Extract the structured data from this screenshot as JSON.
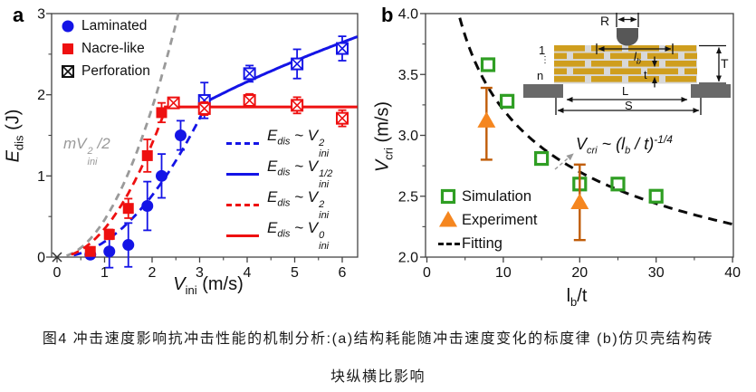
{
  "chart_data": [
    {
      "id": "a",
      "type": "scatter",
      "xlabel": "V_ini (m/s)",
      "ylabel": "E_dis (J)",
      "xlim": [
        -0.115,
        6.32
      ],
      "ylim": [
        0,
        3
      ],
      "x_ticks": [
        0,
        1,
        2,
        3,
        4,
        5,
        6
      ],
      "y_ticks": [
        0,
        1,
        2,
        3
      ],
      "series": [
        {
          "name": "Laminated",
          "marker": "circle",
          "color": "#1414e6",
          "x": [
            0.7,
            1.1,
            1.5,
            1.9,
            2.2,
            2.6
          ],
          "y": [
            0.03,
            0.07,
            0.15,
            0.63,
            1.0,
            1.5
          ],
          "yerr": [
            0.04,
            0.2,
            0.27,
            0.3,
            0.27,
            0.18
          ]
        },
        {
          "name": "Nacre-like",
          "marker": "square",
          "color": "#ee1010",
          "x": [
            0.7,
            1.1,
            1.5,
            1.9,
            2.2
          ],
          "y": [
            0.07,
            0.28,
            0.6,
            1.25,
            1.78
          ],
          "yerr": [
            0.05,
            0.06,
            0.12,
            0.2,
            0.12
          ]
        },
        {
          "name": "Perforation (laminated)",
          "marker": "crossed-square",
          "color": "#1414e6",
          "x": [
            3.1,
            4.05,
            5.05,
            6.0
          ],
          "y": [
            1.93,
            2.26,
            2.38,
            2.57
          ],
          "yerr": [
            0.22,
            0.1,
            0.18,
            0.15
          ]
        },
        {
          "name": "Perforation (nacre-like)",
          "marker": "crossed-square",
          "color": "#ee1010",
          "x": [
            2.45,
            3.1,
            4.05,
            5.05,
            6.0
          ],
          "y": [
            1.9,
            1.83,
            1.93,
            1.87,
            1.71
          ],
          "yerr": [
            0.06,
            0.08,
            0.08,
            0.1,
            0.1
          ]
        }
      ],
      "curves": [
        {
          "name": "mV_ini^2/2",
          "type": "power",
          "coef": 0.46,
          "exp": 2,
          "x_range": [
            0.2,
            2.554
          ],
          "color": "#9a9a9a",
          "dash": "8 6",
          "width": 2.8
        },
        {
          "name": "E_dis ~ V_ini^2 (laminated)",
          "type": "power",
          "coef": 0.19,
          "exp": 2,
          "x_range": [
            0.35,
            3.17
          ],
          "color": "#1414e6",
          "dash": "9 6",
          "width": 2.8
        },
        {
          "name": "E_dis ~ V_ini^2 (nacre-like)",
          "type": "power",
          "coef": 0.35,
          "exp": 2,
          "x_range": [
            0.3,
            2.3
          ],
          "color": "#ee1010",
          "dash": "9 6",
          "width": 2.8
        },
        {
          "name": "E_dis ~ V_ini^1/2",
          "type": "power",
          "coef": 1.08,
          "exp": 0.5,
          "x_range": [
            3.1,
            6.32
          ],
          "color": "#1414e6",
          "dash": "",
          "width": 3
        },
        {
          "name": "E_dis ~ V_ini^0",
          "type": "power",
          "coef": 1.85,
          "exp": 0,
          "x_range": [
            2.25,
            6.32
          ],
          "color": "#ee1010",
          "dash": "",
          "width": 3
        }
      ]
    },
    {
      "id": "b",
      "type": "scatter",
      "xlabel": "l_b/t",
      "ylabel": "V_cri (m/s)",
      "xlim": [
        -0.2,
        40.2
      ],
      "ylim": [
        2.0,
        4.0
      ],
      "x_ticks": [
        0,
        10,
        20,
        30,
        40
      ],
      "y_ticks": [
        2.0,
        2.5,
        3.0,
        3.5,
        4.0
      ],
      "series": [
        {
          "name": "Simulation",
          "marker": "open-square",
          "color": "#2f9e23",
          "x": [
            8,
            10.5,
            15,
            20,
            25,
            30
          ],
          "y": [
            3.58,
            3.28,
            2.81,
            2.6,
            2.6,
            2.5
          ]
        },
        {
          "name": "Experiment",
          "marker": "triangle",
          "color": "#f5861f",
          "err_color": "#c05c08",
          "x": [
            7.8,
            20
          ],
          "y": [
            3.12,
            2.45
          ],
          "yerr": [
            [
              0.32,
              0.27
            ],
            [
              0.31,
              0.31
            ]
          ]
        }
      ],
      "curves": [
        {
          "name": "Fitting  V_cri ~ (l_b/t)^-1/4",
          "type": "power",
          "coef": 5.71,
          "exp": -0.25,
          "x_range": [
            4.3,
            40
          ],
          "color": "#0a0a0a",
          "dash": "10 7",
          "width": 3
        }
      ]
    }
  ],
  "ui": {
    "panel_a": {
      "letter": "a",
      "xlabel": {
        "base": "V",
        "sub": "ini",
        "unit": " (m/s)"
      },
      "ylabel": {
        "base": "E",
        "sub": "dis",
        "unit": " (J)"
      },
      "legend": [
        {
          "marker": "circle",
          "color": "#1414e6",
          "label": "Laminated"
        },
        {
          "marker": "square",
          "color": "#ee1010",
          "label": "Nacre-like"
        },
        {
          "marker": "crossed-square",
          "color": "#111111",
          "label": "Perforation"
        }
      ],
      "formula_parts": {
        "E": "E",
        "Esub": "dis",
        "tilde": " ~ ",
        "V": "V",
        "Vsub": "ini"
      },
      "formula_legend": [
        {
          "style": "dashed",
          "color": "#1414e6",
          "exp": "2"
        },
        {
          "style": "solid",
          "color": "#1414e6",
          "exp": "1/2"
        },
        {
          "style": "dashed",
          "color": "#ee1010",
          "exp": "2"
        },
        {
          "style": "solid",
          "color": "#ee1010",
          "exp": "0"
        }
      ],
      "gray_label": {
        "pre": "mV",
        "sup": "2",
        "sub": "ini",
        "post": "/2"
      }
    },
    "panel_b": {
      "letter": "b",
      "xlabel": {
        "base": "l",
        "sub": "b",
        "unit": "/t"
      },
      "ylabel": {
        "base": "V",
        "sub": "cri",
        "unit": " (m/s)"
      },
      "legend": [
        {
          "marker": "open-square",
          "color": "#2f9e23",
          "label": "Simulation"
        },
        {
          "marker": "triangle",
          "color": "#f5861f",
          "label": "Experiment"
        },
        {
          "marker": "dash",
          "color": "#111111",
          "label": "Fitting"
        }
      ],
      "annotation": {
        "V": "V",
        "Vsub": "cri",
        "mid": " ~ (",
        "l": "l",
        "lsub": "b",
        "rest": " / t",
        "close": ")",
        "exp": "-1/4"
      },
      "inset_labels": {
        "R": "R",
        "one": "1",
        "dots": "⋮",
        "n": "n",
        "lb": "l",
        "lbsub": "b",
        "t": "t",
        "T": "T",
        "L": "L",
        "S": "S"
      }
    },
    "caption": {
      "line1": "图4 冲击速度影响抗冲击性能的机制分析:(a)结构耗能随冲击速度变化的标度律 (b)仿贝壳结构砖",
      "line2": "块纵横比影响"
    }
  }
}
